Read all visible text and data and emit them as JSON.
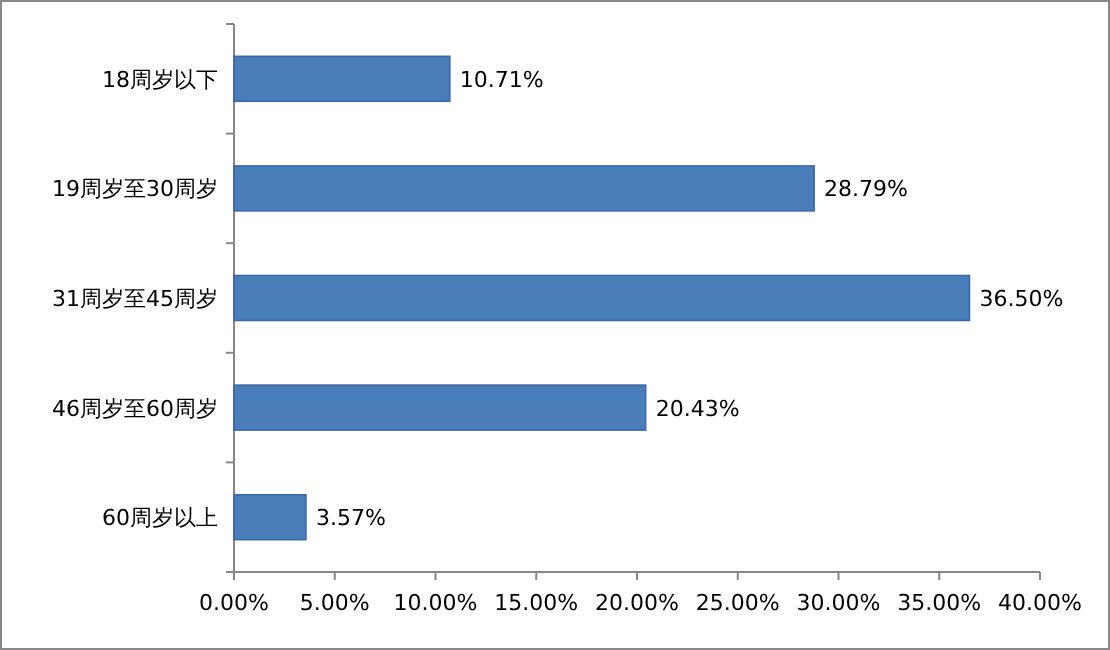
{
  "chart_data": {
    "type": "bar",
    "orientation": "horizontal",
    "categories": [
      "18周岁以下",
      "19周岁至30周岁",
      "31周岁至45周岁",
      "46周岁至60周岁",
      "60周岁以上"
    ],
    "values": [
      10.71,
      28.79,
      36.5,
      20.43,
      3.57
    ],
    "value_labels": [
      "10.71%",
      "28.79%",
      "36.50%",
      "20.43%",
      "3.57%"
    ],
    "color": "#4a7ebb",
    "xlim": [
      0,
      40
    ],
    "xticks": [
      {
        "value": 0,
        "label": "0.00%"
      },
      {
        "value": 5,
        "label": "5.00%"
      },
      {
        "value": 10,
        "label": "10.00%"
      },
      {
        "value": 15,
        "label": "15.00%"
      },
      {
        "value": 20,
        "label": "20.00%"
      },
      {
        "value": 25,
        "label": "25.00%"
      },
      {
        "value": 30,
        "label": "30.00%"
      },
      {
        "value": 35,
        "label": "35.00%"
      },
      {
        "value": 40,
        "label": "40.00%"
      }
    ]
  }
}
